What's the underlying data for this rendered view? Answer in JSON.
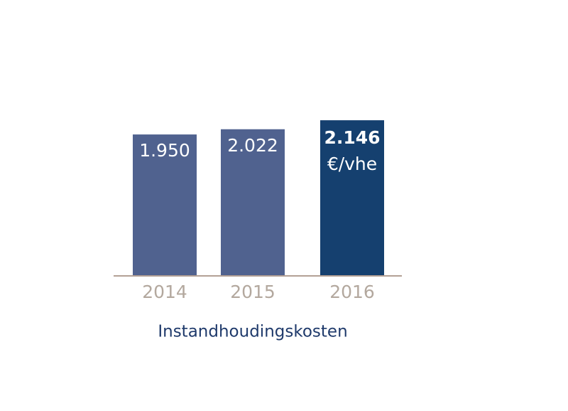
{
  "chart_data": {
    "type": "bar",
    "title": "Instandhoudingskosten",
    "categories": [
      "2014",
      "2015",
      "2016"
    ],
    "values": [
      1950,
      2022,
      2146
    ],
    "value_labels": [
      "1.950",
      "2.022",
      "2.146"
    ],
    "colors": [
      "#50628f",
      "#50628f",
      "#15406f"
    ],
    "annotation": "€/vhe"
  }
}
